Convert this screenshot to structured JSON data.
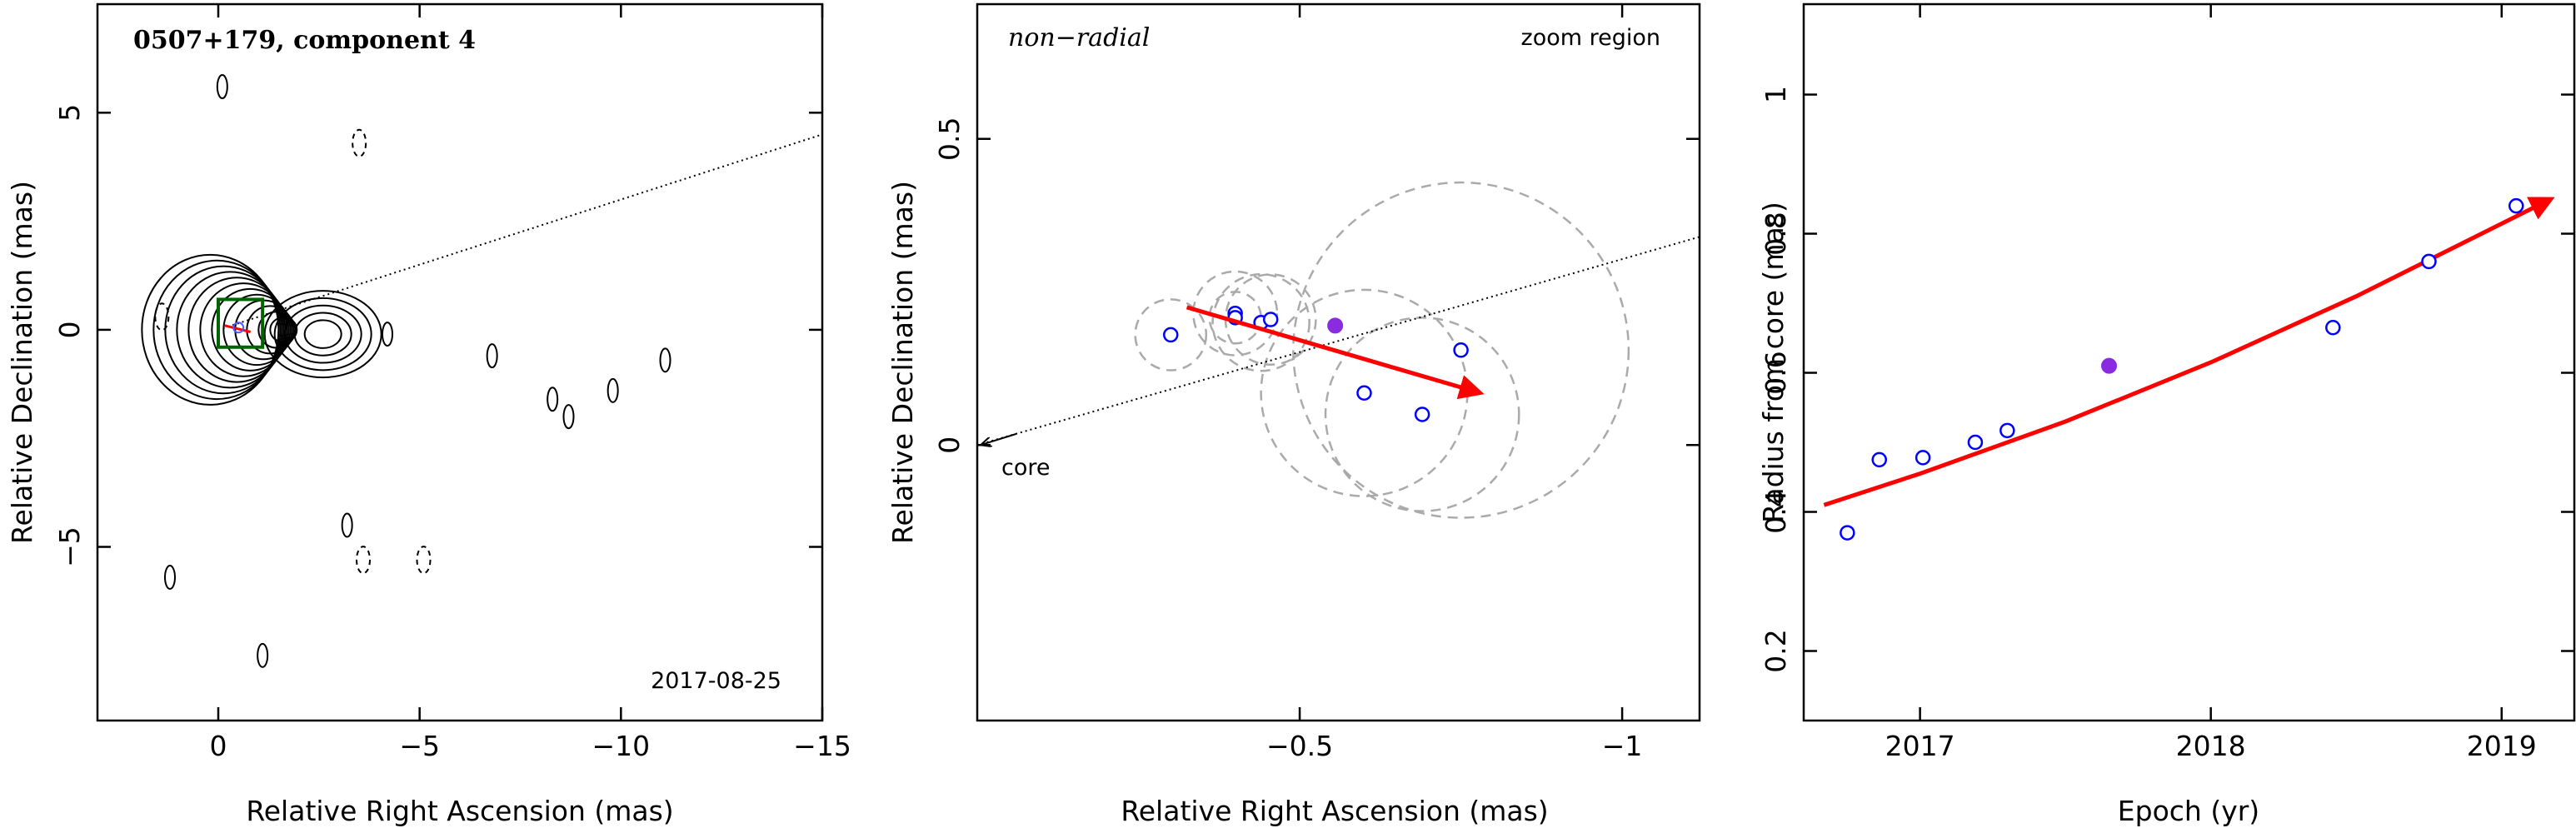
{
  "chart_data": [
    {
      "type": "contour",
      "annotation_title": "0507+179, component 4",
      "annotation_epoch": "2017-08-25",
      "xlabel": "Relative Right Ascension (mas)",
      "ylabel": "Relative Declination (mas)",
      "xlim": [
        3.0,
        -15.0
      ],
      "ylim": [
        -9.0,
        7.5
      ],
      "xticks": [
        0,
        -5,
        -10,
        -15
      ],
      "yticks": [
        -5,
        0,
        5
      ],
      "xtick_labels": [
        "0",
        "−5",
        "−10",
        "−15"
      ],
      "ytick_labels": [
        "−5",
        "0",
        "5"
      ],
      "zoom_box": {
        "x": [
          0.0,
          -1.1
        ],
        "y": [
          -0.4,
          0.7
        ],
        "color": "#006400"
      },
      "direction_line": {
        "from": [
          0,
          0
        ],
        "to": [
          -15,
          4.5
        ]
      },
      "contour_centers": [
        {
          "x": 0.2,
          "y": 0.0,
          "levels": 12
        },
        {
          "x": -2.6,
          "y": -0.1,
          "levels": 5
        }
      ],
      "small_islands": [
        {
          "x": -4.2,
          "y": -0.1
        },
        {
          "x": -6.8,
          "y": -0.6
        },
        {
          "x": -8.3,
          "y": -1.6
        },
        {
          "x": -8.7,
          "y": -2.0
        },
        {
          "x": -9.8,
          "y": -1.4
        },
        {
          "x": -11.1,
          "y": -0.7
        },
        {
          "x": -0.1,
          "y": 5.6
        },
        {
          "x": 1.2,
          "y": -5.7
        },
        {
          "x": -1.1,
          "y": -7.5
        },
        {
          "x": -3.2,
          "y": -4.5
        }
      ],
      "negative_islands": [
        {
          "x": 1.4,
          "y": 0.3
        },
        {
          "x": -3.5,
          "y": 4.3
        },
        {
          "x": -3.6,
          "y": -5.3
        },
        {
          "x": -5.1,
          "y": -5.3
        }
      ]
    },
    {
      "type": "scatter",
      "annotation_left": "non−radial",
      "annotation_right": "zoom region",
      "core_label": "core",
      "xlabel": "Relative Right Ascension (mas)",
      "ylabel": "Relative Declination (mas)",
      "xlim": [
        0.0,
        -1.12
      ],
      "ylim": [
        -0.45,
        0.72
      ],
      "xticks": [
        -0.5,
        -1.0
      ],
      "yticks": [
        0,
        0.5
      ],
      "xtick_labels": [
        "−0.5",
        "−1"
      ],
      "ytick_labels": [
        "0",
        "0.5"
      ],
      "points": [
        {
          "x": -0.3,
          "y": 0.18,
          "r": 0.055
        },
        {
          "x": -0.4,
          "y": 0.215,
          "r": 0.065
        },
        {
          "x": -0.4,
          "y": 0.208,
          "r": 0.04
        },
        {
          "x": -0.44,
          "y": 0.2,
          "r": 0.075
        },
        {
          "x": -0.455,
          "y": 0.205,
          "r": 0.07
        },
        {
          "x": -0.6,
          "y": 0.085,
          "r": 0.16
        },
        {
          "x": -0.69,
          "y": 0.05,
          "r": 0.15
        },
        {
          "x": -0.75,
          "y": 0.155,
          "r": 0.26
        }
      ],
      "highlight_point": {
        "x": -0.555,
        "y": 0.195
      },
      "velocity_arrow": {
        "from": [
          -0.325,
          0.225
        ],
        "to": [
          -0.78,
          0.085
        ],
        "color": "#ff0000"
      },
      "direction_line": {
        "from": [
          0.0,
          0.0
        ],
        "to": [
          -1.12,
          0.34
        ]
      },
      "core_arrow": {
        "from": [
          -0.06,
          0.018
        ],
        "to": [
          0.0,
          0.0
        ]
      }
    },
    {
      "type": "scatter",
      "xlabel": "Epoch (yr)",
      "ylabel": "Radius from core (mas)",
      "xlim": [
        2016.6,
        2019.25
      ],
      "ylim": [
        0.1,
        1.13
      ],
      "xticks": [
        2017,
        2018,
        2019
      ],
      "yticks": [
        0.2,
        0.4,
        0.6,
        0.8,
        1
      ],
      "xtick_labels": [
        "2017",
        "2018",
        "2019"
      ],
      "ytick_labels": [
        "0.2",
        "0.4",
        "0.6",
        "0.8",
        "1"
      ],
      "points": [
        {
          "x": 2016.75,
          "y": 0.37
        },
        {
          "x": 2016.86,
          "y": 0.475
        },
        {
          "x": 2017.01,
          "y": 0.478
        },
        {
          "x": 2017.19,
          "y": 0.5
        },
        {
          "x": 2017.3,
          "y": 0.517
        },
        {
          "x": 2018.42,
          "y": 0.665
        },
        {
          "x": 2018.75,
          "y": 0.76
        },
        {
          "x": 2019.05,
          "y": 0.84
        }
      ],
      "highlight_point": {
        "x": 2017.65,
        "y": 0.61
      },
      "fit_curve": {
        "x": [
          2016.67,
          2017.0,
          2017.5,
          2018.0,
          2018.5,
          2019.17
        ],
        "y": [
          0.41,
          0.455,
          0.53,
          0.615,
          0.71,
          0.85
        ],
        "color": "#ff0000"
      }
    }
  ],
  "colors": {
    "axes": "#000000",
    "open_point": "#0000ff",
    "highlight_point": "#8a2be2",
    "arrow": "#ff0000",
    "error_circle": "#aaaaaa",
    "zoom_box": "#006400",
    "marker_inner": "#5555ff"
  }
}
